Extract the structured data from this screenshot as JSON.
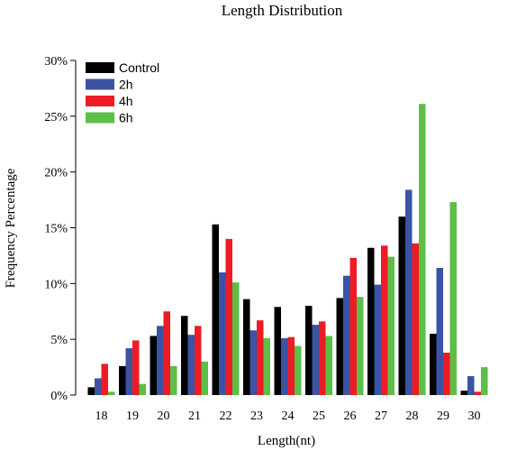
{
  "chart_data": {
    "type": "bar",
    "title": "Length Distribution",
    "xlabel": "Length(nt)",
    "ylabel": "Frequency Percentage",
    "categories": [
      "18",
      "19",
      "20",
      "21",
      "22",
      "23",
      "24",
      "25",
      "26",
      "27",
      "28",
      "29",
      "30"
    ],
    "ylim": [
      0,
      30
    ],
    "yticks": [
      "0%",
      "5%",
      "10%",
      "15%",
      "20%",
      "25%",
      "30%"
    ],
    "yticks_values": [
      0,
      5,
      10,
      15,
      20,
      25,
      30
    ],
    "grid": false,
    "legend_position": "top-left",
    "series": [
      {
        "name": "Control",
        "color": "#000000",
        "values": [
          0.7,
          2.6,
          5.3,
          7.1,
          15.3,
          8.6,
          7.9,
          8.0,
          8.7,
          13.2,
          16.0,
          5.5,
          0.4
        ]
      },
      {
        "name": "2h",
        "color": "#3a53a4",
        "values": [
          1.5,
          4.2,
          6.2,
          5.4,
          11.0,
          5.8,
          5.1,
          6.3,
          10.7,
          9.9,
          18.4,
          11.4,
          1.7
        ]
      },
      {
        "name": "4h",
        "color": "#ed1c24",
        "values": [
          2.8,
          4.9,
          7.5,
          6.2,
          14.0,
          6.7,
          5.2,
          6.6,
          12.3,
          13.4,
          13.6,
          3.8,
          0.3
        ]
      },
      {
        "name": "6h",
        "color": "#5cbf47",
        "values": [
          0.3,
          1.0,
          2.6,
          3.0,
          10.1,
          5.1,
          4.4,
          5.3,
          8.8,
          12.4,
          26.1,
          17.3,
          2.5
        ]
      }
    ]
  }
}
